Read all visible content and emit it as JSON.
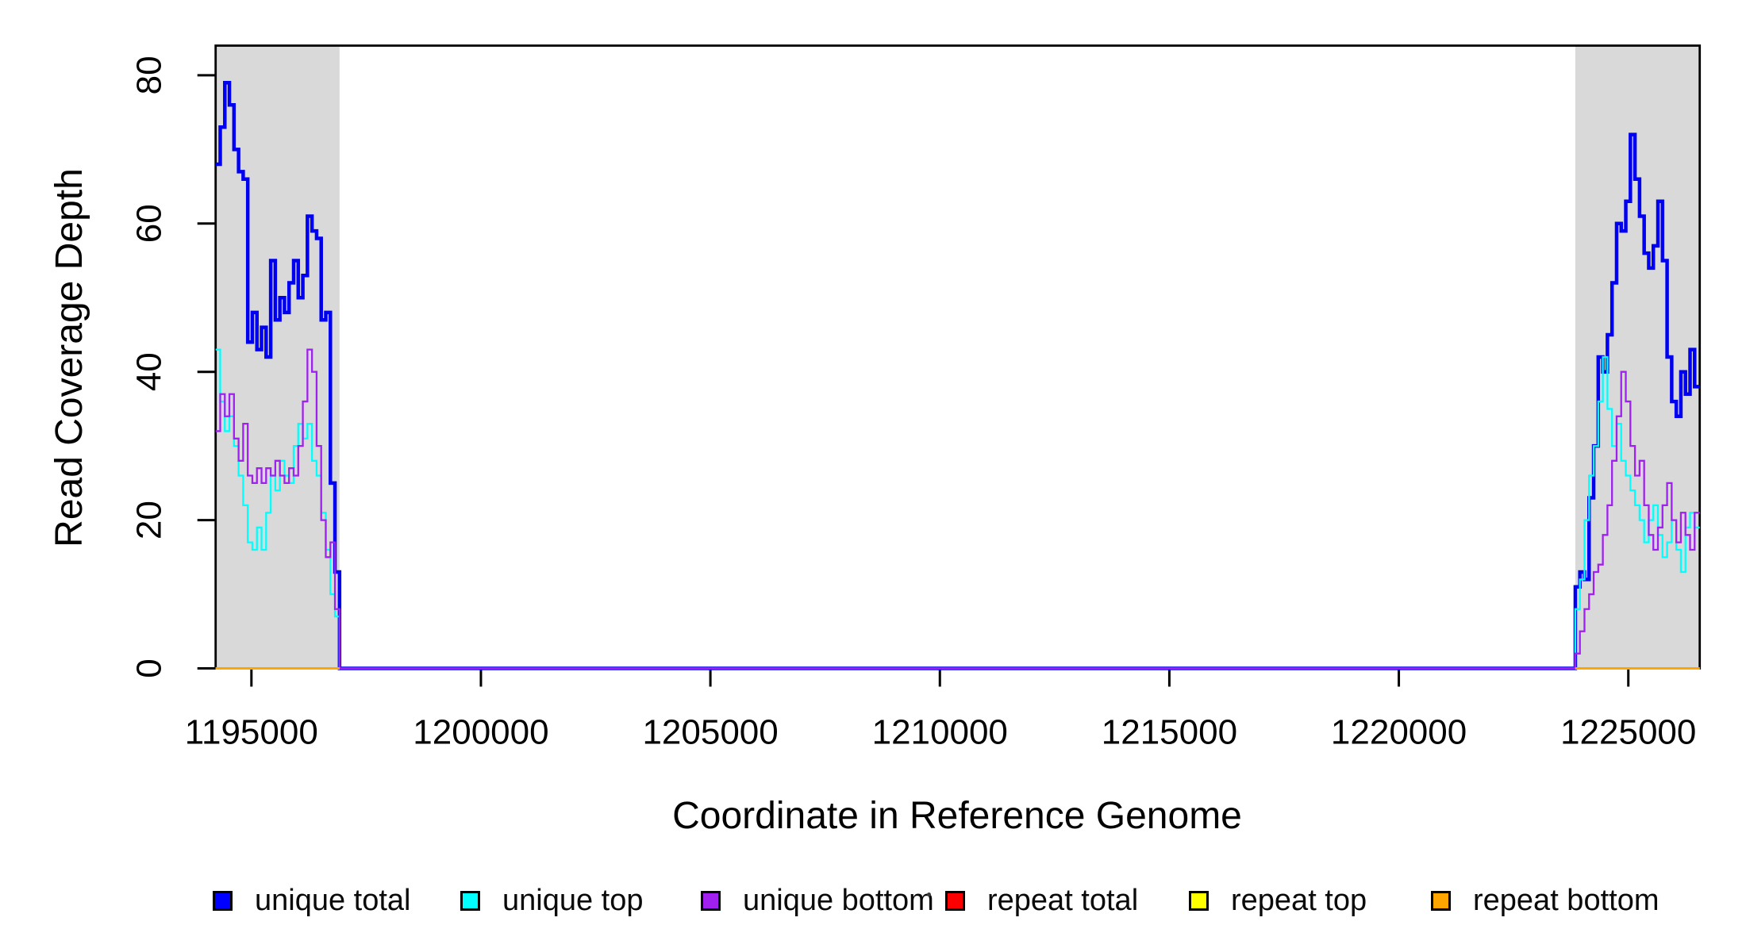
{
  "chart_data": {
    "type": "line",
    "subtype": "step",
    "title": "",
    "xlabel": "Coordinate in Reference Genome",
    "ylabel": "Read Coverage Depth",
    "xlim": [
      1194220,
      1226556
    ],
    "ylim": [
      0,
      84
    ],
    "x_ticks": [
      1195000,
      1200000,
      1205000,
      1210000,
      1215000,
      1220000,
      1225000
    ],
    "y_ticks": [
      0,
      20,
      40,
      60,
      80
    ],
    "grid": false,
    "legend_position": "bottom",
    "shaded_region_color": "#d9d9d9",
    "shaded_regions": [
      {
        "x0": 1194220,
        "x1": 1196920
      },
      {
        "x0": 1223845,
        "x1": 1226556
      }
    ],
    "step_bp": 100,
    "series": [
      {
        "name": "unique total",
        "color": "#0000f0",
        "line_width": 4.5,
        "segments": [
          {
            "x0": 1194220,
            "step": 100,
            "values": [
              68,
              73,
              79,
              76,
              70,
              67,
              66,
              44,
              48,
              43,
              46,
              42,
              55,
              47,
              50,
              48,
              52,
              55,
              50,
              53,
              61,
              59,
              58,
              47,
              48,
              25,
              13
            ]
          },
          {
            "x0": 1196920,
            "step": 26925,
            "values": [
              0
            ]
          },
          {
            "x0": 1223845,
            "step": 100,
            "xend": 1226556,
            "values": [
              11,
              13,
              12,
              23,
              30,
              42,
              40,
              45,
              52,
              60,
              59,
              63,
              72,
              66,
              61,
              56,
              54,
              57,
              63,
              55,
              42,
              36,
              34,
              40,
              37,
              43,
              38
            ]
          }
        ]
      },
      {
        "name": "unique top",
        "color": "#00ffff",
        "line_width": 2.3,
        "segments": [
          {
            "x0": 1194220,
            "step": 100,
            "values": [
              43,
              36,
              32,
              34,
              30,
              26,
              22,
              17,
              16,
              19,
              16,
              21,
              26,
              24,
              28,
              26,
              25,
              30,
              33,
              31,
              33,
              28,
              26,
              21,
              16,
              10,
              7
            ]
          },
          {
            "x0": 1196920,
            "step": 26925,
            "values": [
              0
            ]
          },
          {
            "x0": 1223845,
            "step": 100,
            "xend": 1226556,
            "values": [
              8,
              12,
              20,
              26,
              30,
              36,
              42,
              35,
              30,
              33,
              28,
              26,
              24,
              22,
              20,
              17,
              20,
              22,
              18,
              15,
              17,
              20,
              16,
              13,
              19,
              21,
              19
            ]
          }
        ]
      },
      {
        "name": "unique bottom",
        "color": "#a020f0",
        "line_width": 2.3,
        "segments": [
          {
            "x0": 1194220,
            "step": 100,
            "values": [
              32,
              37,
              34,
              37,
              31,
              28,
              33,
              26,
              25,
              27,
              25,
              27,
              26,
              28,
              26,
              25,
              27,
              26,
              30,
              36,
              43,
              40,
              30,
              20,
              15,
              17,
              8
            ]
          },
          {
            "x0": 1196920,
            "step": 26925,
            "values": [
              0
            ]
          },
          {
            "x0": 1223845,
            "step": 100,
            "xend": 1226556,
            "values": [
              2,
              5,
              8,
              10,
              13,
              14,
              18,
              22,
              28,
              34,
              40,
              36,
              30,
              26,
              28,
              22,
              18,
              16,
              19,
              22,
              25,
              20,
              17,
              21,
              18,
              16,
              21
            ]
          }
        ]
      },
      {
        "name": "repeat total",
        "color": "#ff0000",
        "line_width": 2.3,
        "segments": [
          {
            "x0": 1194220,
            "step": 2700,
            "values": [
              0
            ]
          },
          {
            "x0": 1223845,
            "step": 2711,
            "values": [
              0
            ]
          }
        ]
      },
      {
        "name": "repeat top",
        "color": "#ffff00",
        "line_width": 2.3,
        "segments": [
          {
            "x0": 1194220,
            "step": 2700,
            "values": [
              0
            ]
          },
          {
            "x0": 1223845,
            "step": 2711,
            "values": [
              0
            ]
          }
        ]
      },
      {
        "name": "repeat bottom",
        "color": "#ffa500",
        "line_width": 3,
        "segments": [
          {
            "x0": 1194220,
            "step": 2700,
            "values": [
              0
            ]
          },
          {
            "x0": 1223845,
            "step": 2711,
            "values": [
              0
            ]
          }
        ]
      }
    ]
  },
  "legend": {
    "items": [
      {
        "label": "unique total",
        "color": "#0000ff"
      },
      {
        "label": "unique top",
        "color": "#00ffff"
      },
      {
        "label": "unique bottom",
        "color": "#a020f0"
      },
      {
        "label": "repeat total",
        "color": "#ff0000"
      },
      {
        "label": "repeat top",
        "color": "#ffff00"
      },
      {
        "label": "repeat bottom",
        "color": "#ffa500"
      }
    ]
  },
  "annotations": {
    "stray_mark": "."
  }
}
